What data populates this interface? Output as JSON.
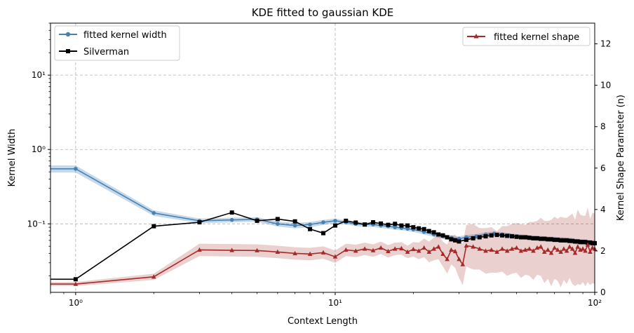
{
  "chart_data": {
    "type": "line",
    "title": "KDE fitted to gaussian KDE",
    "xlabel": "Context Length",
    "ylabel_left": "Kernel Width",
    "ylabel_right": "Kernel Shape Parameter (n)",
    "x_scale": "log",
    "y_left_scale": "log",
    "xlim": [
      0.8,
      100
    ],
    "ylim_left": [
      0.012,
      50
    ],
    "ylim_right": [
      0,
      13
    ],
    "x_ticks": [
      {
        "value": 1,
        "label": "10⁰"
      },
      {
        "value": 10,
        "label": "10¹"
      },
      {
        "value": 100,
        "label": "10²"
      }
    ],
    "y_left_ticks": [
      {
        "value": 0.1,
        "label": "10⁻¹"
      },
      {
        "value": 1,
        "label": "10⁰"
      },
      {
        "value": 10,
        "label": "10¹"
      }
    ],
    "y_right_ticks": [
      {
        "value": 0,
        "label": "0"
      },
      {
        "value": 2,
        "label": "2"
      },
      {
        "value": 4,
        "label": "4"
      },
      {
        "value": 6,
        "label": "6"
      },
      {
        "value": 8,
        "label": "8"
      },
      {
        "value": 10,
        "label": "10"
      },
      {
        "value": 12,
        "label": "12"
      }
    ],
    "grid": true,
    "legend_left": "upper-left",
    "legend_right": "upper-right",
    "series": [
      {
        "name": "fitted kernel width",
        "axis": "left",
        "color": "#4682b4",
        "marker": "circle",
        "x": [
          1,
          2,
          3,
          4,
          5,
          6,
          7,
          8,
          9,
          10,
          11,
          12,
          13,
          14,
          15,
          16,
          17,
          18,
          19,
          20,
          22,
          24,
          26,
          28,
          30,
          32,
          35,
          38,
          41,
          44,
          47,
          50,
          55,
          60,
          65,
          70,
          75,
          80,
          85,
          90,
          95,
          100
        ],
        "y": [
          0.55,
          0.14,
          0.11,
          0.113,
          0.115,
          0.1,
          0.095,
          0.098,
          0.105,
          0.11,
          0.105,
          0.1,
          0.098,
          0.098,
          0.095,
          0.093,
          0.09,
          0.088,
          0.086,
          0.084,
          0.078,
          0.072,
          0.068,
          0.065,
          0.063,
          0.066,
          0.068,
          0.072,
          0.074,
          0.072,
          0.07,
          0.068,
          0.066,
          0.064,
          0.063,
          0.062,
          0.061,
          0.06,
          0.058,
          0.057,
          0.056,
          0.055
        ],
        "band": [
          0.06,
          0.012,
          0.008,
          0.008,
          0.008,
          0.008,
          0.008,
          0.008,
          0.008,
          0.008,
          0.007,
          0.007,
          0.007,
          0.007,
          0.007,
          0.007,
          0.007,
          0.006,
          0.006,
          0.006,
          0.006,
          0.005,
          0.005,
          0.005,
          0.005,
          0.005,
          0.005,
          0.005,
          0.005,
          0.005,
          0.005,
          0.005,
          0.005,
          0.005,
          0.005,
          0.005,
          0.005,
          0.005,
          0.005,
          0.005,
          0.005,
          0.005
        ]
      },
      {
        "name": "Silverman",
        "axis": "left",
        "color": "#000000",
        "marker": "square",
        "x": [
          1,
          2,
          3,
          4,
          5,
          6,
          7,
          8,
          9,
          10,
          11,
          12,
          13,
          14,
          15,
          16,
          17,
          18,
          19,
          20,
          21,
          22,
          23,
          24,
          25,
          26,
          27,
          28,
          29,
          30,
          32,
          34,
          36,
          38,
          40,
          42,
          44,
          46,
          48,
          50,
          52,
          54,
          56,
          58,
          60,
          62,
          64,
          66,
          68,
          70,
          72,
          74,
          76,
          78,
          80,
          82,
          84,
          86,
          88,
          90,
          92,
          94,
          96,
          98,
          100
        ],
        "y": [
          0.018,
          0.093,
          0.105,
          0.142,
          0.11,
          0.116,
          0.108,
          0.085,
          0.075,
          0.095,
          0.11,
          0.104,
          0.098,
          0.105,
          0.101,
          0.097,
          0.1,
          0.095,
          0.095,
          0.09,
          0.087,
          0.085,
          0.08,
          0.077,
          0.072,
          0.07,
          0.066,
          0.062,
          0.06,
          0.058,
          0.061,
          0.064,
          0.066,
          0.068,
          0.07,
          0.071,
          0.07,
          0.069,
          0.068,
          0.067,
          0.066,
          0.066,
          0.065,
          0.064,
          0.064,
          0.063,
          0.063,
          0.062,
          0.062,
          0.061,
          0.061,
          0.06,
          0.06,
          0.06,
          0.059,
          0.059,
          0.058,
          0.058,
          0.057,
          0.057,
          0.057,
          0.056,
          0.056,
          0.055,
          0.055
        ]
      },
      {
        "name": "fitted kernel shape",
        "axis": "right",
        "color": "#a52a2a",
        "marker": "triangle",
        "x": [
          1,
          2,
          3,
          4,
          5,
          6,
          7,
          8,
          9,
          10,
          11,
          12,
          13,
          14,
          15,
          16,
          17,
          18,
          19,
          20,
          21,
          22,
          23,
          24,
          25,
          26,
          27,
          28,
          29,
          30,
          31,
          32,
          34,
          36,
          38,
          40,
          42,
          44,
          46,
          48,
          50,
          52,
          54,
          56,
          58,
          60,
          62,
          64,
          66,
          68,
          70,
          72,
          74,
          76,
          78,
          80,
          82,
          84,
          86,
          88,
          90,
          92,
          94,
          96,
          98,
          100
        ],
        "y": [
          0.4,
          0.75,
          2.05,
          2.03,
          2.02,
          1.95,
          1.88,
          1.85,
          1.92,
          1.72,
          2.05,
          2.0,
          2.1,
          2.02,
          2.15,
          1.98,
          2.1,
          2.12,
          1.95,
          2.08,
          2.0,
          2.15,
          1.95,
          2.1,
          2.2,
          1.85,
          1.6,
          2.05,
          1.98,
          1.6,
          1.35,
          2.25,
          2.2,
          2.1,
          2.0,
          2.05,
          1.95,
          2.1,
          2.0,
          2.1,
          2.15,
          2.0,
          2.05,
          2.1,
          2.0,
          2.15,
          2.2,
          1.95,
          2.05,
          1.9,
          2.15,
          2.05,
          1.95,
          2.1,
          2.0,
          2.2,
          2.1,
          1.9,
          2.2,
          2.05,
          2.1,
          2.0,
          2.3,
          1.95,
          2.15,
          2.1
        ],
        "band": [
          0.1,
          0.15,
          0.3,
          0.3,
          0.3,
          0.3,
          0.3,
          0.3,
          0.3,
          0.3,
          0.3,
          0.3,
          0.3,
          0.3,
          0.3,
          0.3,
          0.3,
          0.3,
          0.3,
          0.35,
          0.4,
          0.45,
          0.5,
          0.55,
          0.6,
          0.6,
          0.7,
          0.7,
          0.8,
          0.9,
          1.0,
          1.0,
          1.1,
          1.0,
          1.1,
          1.1,
          1.0,
          1.1,
          1.2,
          1.2,
          1.2,
          1.3,
          1.2,
          1.3,
          1.4,
          1.3,
          1.4,
          1.5,
          1.4,
          1.6,
          1.5,
          1.5,
          1.7,
          1.5,
          1.6,
          1.5,
          1.7,
          1.6,
          1.8,
          1.7,
          1.6,
          1.7,
          1.8,
          1.6,
          1.7,
          1.7
        ]
      }
    ]
  }
}
